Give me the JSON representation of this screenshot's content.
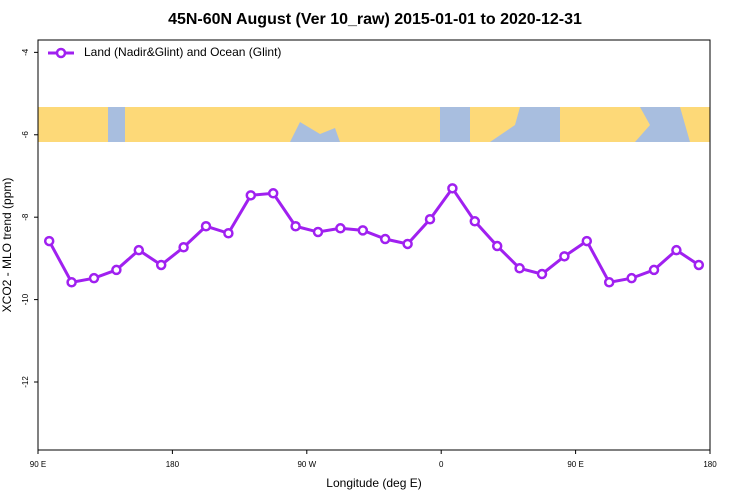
{
  "chart_data": {
    "type": "line",
    "title": "45N-60N August (Ver 10_raw)   2015-01-01 to 2020-12-31",
    "xlabel": "Longitude (deg E)",
    "ylabel": "XCO2 - MLO trend (ppm)",
    "xlim": [
      90,
      540
    ],
    "ylim": [
      -13.65,
      -3.7
    ],
    "xticks": [
      {
        "value": 90,
        "label": "90 E"
      },
      180,
      {
        "value": 270,
        "label": "90 W"
      },
      {
        "value": 360,
        "label": "0"
      },
      {
        "value": 450,
        "label": "90 E"
      },
      {
        "value": 540,
        "label": "180"
      }
    ],
    "yticks": [
      -4,
      -6,
      -8,
      -10,
      -12
    ],
    "legend": "upper left",
    "x": [
      97.5,
      112.5,
      127.5,
      142.5,
      157.5,
      172.5,
      187.5,
      202.5,
      217.5,
      232.5,
      247.5,
      262.5,
      277.5,
      292.5,
      307.5,
      322.5,
      337.5,
      352.5,
      367.5,
      382.5,
      397.5,
      412.5,
      427.5,
      442.5,
      457.5,
      472.5,
      487.5,
      502.5,
      517.5,
      532.5
    ],
    "series": [
      {
        "name": "Land (Nadir&Glint) and Ocean (Glint)",
        "color": "#a020f0",
        "values": [
          -8.58,
          -9.58,
          -9.48,
          -9.28,
          -8.8,
          -9.16,
          -8.73,
          -8.22,
          -8.39,
          -7.47,
          -7.42,
          -8.22,
          -8.36,
          -8.27,
          -8.32,
          -8.53,
          -8.65,
          -8.05,
          -7.3,
          -8.1,
          -8.7,
          -9.24,
          -9.38,
          -8.95,
          -8.58,
          -9.58,
          -9.48,
          -9.28,
          -8.8,
          -9.16
        ]
      }
    ]
  }
}
